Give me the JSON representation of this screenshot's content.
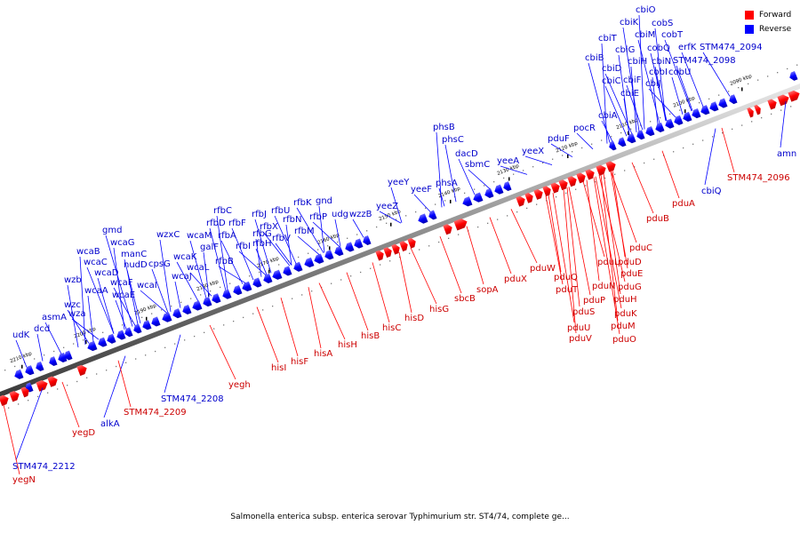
{
  "caption": "Salmonella enterica subsp. enterica serovar Typhimurium str. ST4/74, complete ge...",
  "legend": [
    {
      "label": "Forward",
      "color": "#ff0000"
    },
    {
      "label": "Reverse",
      "color": "#0000ff"
    }
  ],
  "colors": {
    "forward": "#ff0000",
    "reverse": "#0000ff",
    "forward_label": "#cc0000",
    "reverse_label": "#0000cc"
  },
  "ticks": [
    "2090 kbp",
    "2100 kbp",
    "2110 kbp",
    "2120 kbp",
    "2130 kbp",
    "2140 kbp",
    "2150 kbp",
    "2160 kbp",
    "2170 kbp",
    "2180 kbp",
    "2190 kbp",
    "2200 kbp",
    "2210 kbp"
  ],
  "reverse_labels": [
    "cbiO",
    "cobS",
    "cbiK",
    "cbiM",
    "cobT",
    "cbiT",
    "cbiG",
    "cobQ",
    "erfK",
    "STM474_2094",
    "cbiH",
    "cbiN",
    "STM474_2098",
    "cbiB",
    "cbiD",
    "cobI",
    "cobU",
    "cbiF",
    "cbiC",
    "cbiJ",
    "cbiE",
    "cbiA",
    "pocR",
    "pduF",
    "yeeX",
    "phsB",
    "phsC",
    "dacD",
    "sbmC",
    "yeeA",
    "phsA",
    "yeeY",
    "yeeF",
    "yeeZ",
    "rfbK",
    "gnd",
    "rfbC",
    "rfbJ",
    "rfbU",
    "rfbP",
    "udg",
    "wzzB",
    "rfbD",
    "rfbF",
    "rfbX",
    "rfbN",
    "wzxC",
    "wcaM",
    "rfbA",
    "rfbI",
    "rfbG",
    "rfbH",
    "rfbV",
    "rfbM",
    "gmd",
    "galF",
    "wcaG",
    "manC",
    "wcaK",
    "rfbB",
    "wcaB",
    "nudD",
    "cpsG",
    "wcaL",
    "wcaC",
    "wcaJ",
    "wzb",
    "wcaD",
    "wcaF",
    "wcaI",
    "wcaA",
    "wcaE",
    "asmA",
    "wzc",
    "wza",
    "dcd",
    "udK",
    "STM474_2208",
    "alkA",
    "STM474_2212",
    "amn",
    "cbiQ"
  ],
  "forward_labels": [
    "STM474_2096",
    "pduA",
    "pduB",
    "pduC",
    "pduD",
    "pduE",
    "pduL",
    "pduG",
    "pduN",
    "pduH",
    "pduX",
    "pduW",
    "pduQ",
    "pduT",
    "pduP",
    "pduK",
    "pduS",
    "pduM",
    "pduU",
    "pduO",
    "pduV",
    "sopA",
    "sbcB",
    "hisG",
    "hisD",
    "hisC",
    "hisB",
    "hisH",
    "hisA",
    "hisF",
    "hisI",
    "yegh",
    "STM474_2209",
    "yegD",
    "yegN"
  ]
}
